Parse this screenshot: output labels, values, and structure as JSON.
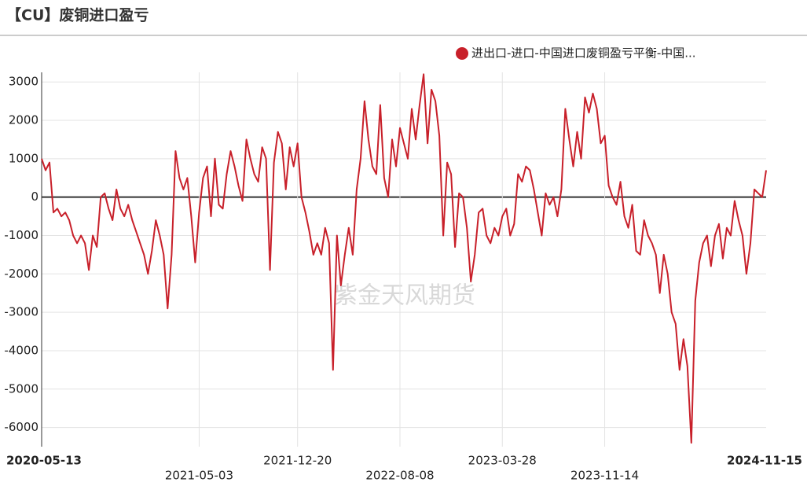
{
  "chart_data": {
    "type": "line",
    "title": "【CU】废铜进口盈亏",
    "watermark": "紫金天风期货",
    "categories": [
      "2020-05-13",
      null,
      null,
      null,
      null,
      null,
      null,
      null,
      null,
      null,
      null,
      null,
      null,
      null,
      null,
      null,
      null,
      null,
      null,
      null,
      null,
      null,
      null,
      null,
      null,
      null,
      null,
      null,
      null,
      null,
      null,
      null,
      null,
      null,
      null,
      null,
      null,
      null,
      null,
      null,
      "2021-05-03",
      null,
      null,
      null,
      null,
      null,
      null,
      null,
      null,
      null,
      null,
      null,
      null,
      null,
      null,
      null,
      null,
      null,
      null,
      null,
      null,
      null,
      null,
      null,
      null,
      "2021-12-20",
      null,
      null,
      null,
      null,
      null,
      null,
      null,
      null,
      null,
      null,
      null,
      null,
      null,
      null,
      null,
      null,
      null,
      null,
      null,
      null,
      null,
      null,
      null,
      null,
      null,
      "2022-08-08",
      null,
      null,
      null,
      null,
      null,
      null,
      null,
      null,
      null,
      null,
      null,
      null,
      null,
      null,
      null,
      null,
      null,
      null,
      null,
      null,
      null,
      null,
      null,
      null,
      null,
      "2023-03-28",
      null,
      null,
      null,
      null,
      null,
      null,
      null,
      null,
      null,
      null,
      null,
      null,
      null,
      null,
      null,
      null,
      null,
      null,
      null,
      null,
      null,
      null,
      null,
      null,
      null,
      "2023-11-14",
      null,
      null,
      null,
      null,
      null,
      null,
      null,
      null,
      null,
      null,
      null,
      null,
      null,
      null,
      null,
      null,
      null,
      null,
      null,
      null,
      null,
      null,
      null,
      null,
      null,
      null,
      null,
      null,
      null,
      null,
      null,
      null,
      null,
      null,
      null,
      null,
      null,
      null,
      null,
      null,
      "2024-11-15"
    ],
    "series": [
      {
        "name": "进出口-进口-中国进口废铜盈亏平衡-中国...",
        "color": "#c8202a",
        "values": [
          1000,
          700,
          900,
          -400,
          -300,
          -500,
          -400,
          -600,
          -1000,
          -1200,
          -1000,
          -1200,
          -1900,
          -1000,
          -1300,
          0,
          100,
          -300,
          -600,
          200,
          -300,
          -500,
          -200,
          -600,
          -900,
          -1200,
          -1500,
          -2000,
          -1400,
          -600,
          -1000,
          -1500,
          -2900,
          -1500,
          1200,
          500,
          200,
          500,
          -500,
          -1700,
          -400,
          500,
          800,
          -500,
          1000,
          -200,
          -300,
          600,
          1200,
          800,
          300,
          -100,
          1500,
          1000,
          600,
          400,
          1300,
          1000,
          -1900,
          900,
          1700,
          1400,
          200,
          1300,
          800,
          1400,
          0,
          -400,
          -900,
          -1500,
          -1200,
          -1500,
          -800,
          -1200,
          -4500,
          -1000,
          -2300,
          -1500,
          -800,
          -1500,
          200,
          1000,
          2500,
          1500,
          800,
          600,
          2400,
          500,
          0,
          1500,
          800,
          1800,
          1400,
          1000,
          2300,
          1500,
          2400,
          3200,
          1400,
          2800,
          2500,
          1600,
          -1000,
          900,
          600,
          -1300,
          100,
          0,
          -800,
          -2200,
          -1500,
          -400,
          -300,
          -1000,
          -1200,
          -800,
          -1000,
          -500,
          -300,
          -1000,
          -700,
          600,
          400,
          800,
          700,
          200,
          -400,
          -1000,
          100,
          -200,
          0,
          -500,
          200,
          2300,
          1500,
          800,
          1700,
          1000,
          2600,
          2200,
          2700,
          2300,
          1400,
          1600,
          300,
          0,
          -200,
          400,
          -500,
          -800,
          -200,
          -1400,
          -1500,
          -600,
          -1000,
          -1200,
          -1500,
          -2500,
          -1500,
          -2000,
          -3000,
          -3300,
          -4500,
          -3700,
          -4400,
          -6400,
          -2700,
          -1700,
          -1200,
          -1000,
          -1800,
          -1000,
          -700,
          -1600,
          -800,
          -1000,
          -100,
          -600,
          -1000,
          -2000,
          -1200,
          200,
          100,
          0,
          700
        ]
      }
    ],
    "ylim": [
      -6500,
      3250
    ],
    "yticks": [
      -6000,
      -5000,
      -4000,
      -3000,
      -2000,
      -1000,
      0,
      1000,
      2000,
      3000
    ],
    "grid": true
  }
}
